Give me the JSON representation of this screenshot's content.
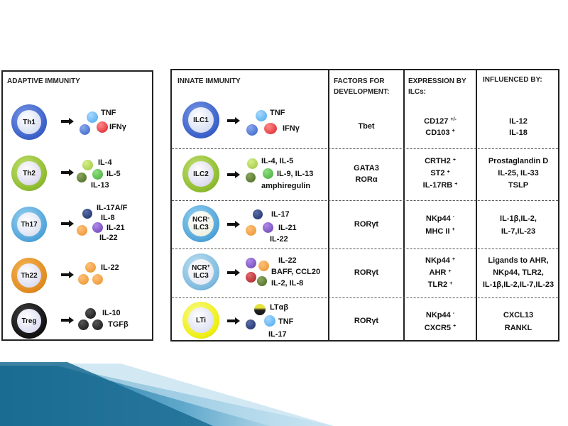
{
  "adaptive": {
    "title": "ADAPTIVE IMMUNITY",
    "cells": [
      {
        "name": "Th1",
        "products": [
          "TNF",
          "IFNγ"
        ]
      },
      {
        "name": "Th2",
        "products": [
          "IL-4",
          "IL-5",
          "IL-13"
        ]
      },
      {
        "name": "Th17",
        "products": [
          "IL-17A/F",
          "IL-8",
          "IL-21",
          "IL-22"
        ]
      },
      {
        "name": "Th22",
        "products": [
          "IL-22"
        ]
      },
      {
        "name": "Treg",
        "products": [
          "IL-10",
          "TGFβ"
        ]
      }
    ]
  },
  "innate": {
    "headers": {
      "cells": "INNATE IMMUNITY",
      "factors": "FACTORS FOR DEVELOPMENT:",
      "expression": "EXPRESSION BY ILCs:",
      "influenced": "INFLUENCED BY:"
    },
    "rows": [
      {
        "cell": {
          "line1": "ILC1",
          "sup1": "",
          "line2": ""
        },
        "products": [
          "TNF",
          "IFNγ"
        ],
        "factors": [
          "Tbet"
        ],
        "expression": [
          {
            "t": "CD127",
            "s": "+/-"
          },
          {
            "t": "CD103",
            "s": "+"
          }
        ],
        "influenced": [
          "IL-12",
          "IL-18"
        ]
      },
      {
        "cell": {
          "line1": "ILC2",
          "sup1": "",
          "line2": ""
        },
        "products": [
          "IL-4, IL-5",
          "IL-9, IL-13",
          "amphiregulin"
        ],
        "factors": [
          "GATA3",
          "RORα"
        ],
        "expression": [
          {
            "t": "CRTH2",
            "s": "+"
          },
          {
            "t": "ST2",
            "s": "+"
          },
          {
            "t": "IL-17RB",
            "s": "+"
          }
        ],
        "influenced": [
          "Prostaglandin D",
          "IL-25, IL-33",
          "TSLP"
        ]
      },
      {
        "cell": {
          "line1": "NCR",
          "sup1": "-",
          "line2": "ILC3"
        },
        "products": [
          "IL-17",
          "IL-21",
          "IL-22"
        ],
        "factors": [
          "RORγt"
        ],
        "expression": [
          {
            "t": "NKp44",
            "s": "-"
          },
          {
            "t": "MHC II",
            "s": "+"
          }
        ],
        "influenced": [
          "IL-1β,IL-2,",
          "IL-7,IL-23"
        ]
      },
      {
        "cell": {
          "line1": "NCR",
          "sup1": "+",
          "line2": "ILC3"
        },
        "products": [
          "IL-22",
          "BAFF, CCL20",
          "IL-2, IL-8"
        ],
        "factors": [
          "RORγt"
        ],
        "expression": [
          {
            "t": "NKp44",
            "s": "+"
          },
          {
            "t": "AHR",
            "s": "+"
          },
          {
            "t": "TLR2",
            "s": "+"
          }
        ],
        "influenced": [
          "Ligands to AHR,",
          "NKp44, TLR2,",
          "IL-1β,IL-2,IL-7,IL-23"
        ]
      },
      {
        "cell": {
          "line1": "LTi",
          "sup1": "",
          "line2": ""
        },
        "products": [
          "LTαβ",
          "TNF",
          "IL-17"
        ],
        "factors": [
          "RORγt"
        ],
        "expression": [
          {
            "t": "NKp44",
            "s": "-"
          },
          {
            "t": "CXCR5",
            "s": "+"
          }
        ],
        "influenced": [
          "CXCL13",
          "RANKL"
        ]
      }
    ]
  },
  "colors": {
    "th1": "#3a5fc8",
    "th2": "#8dbb2d",
    "th17": "#4fa3d9",
    "th22": "#e08a1e",
    "treg": "#111111",
    "ilc1": "#3a5fc8",
    "ilc2": "#8dbb2d",
    "ncr_neg": "#4fa3d9",
    "ncr_pos": "#7cb9dd",
    "lti": "#eeee10",
    "red": "#d8202a",
    "light_blue": "#47a8ec",
    "blue": "#3560c6",
    "light_green": "#9bc53d",
    "green": "#43a83b",
    "dark_green": "#4a6623",
    "navy": "#1b2c66",
    "orange": "#e8922a",
    "purple": "#6a3fb0",
    "dark_red": "#a31f24",
    "black": "#111111",
    "ribbon_dark": "#1b6c93",
    "ribbon_light": "#bfe0ef"
  }
}
